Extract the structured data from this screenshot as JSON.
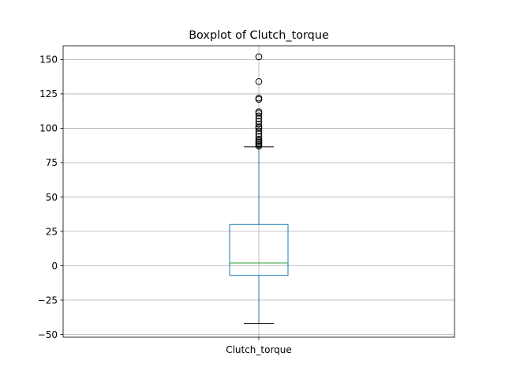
{
  "chart_data": {
    "type": "box",
    "title": "Boxplot of Clutch_torque",
    "xlabel": "",
    "ylabel": "",
    "categories": [
      "Clutch_torque"
    ],
    "ylim": [
      -52,
      160
    ],
    "yticks": [
      -50,
      -25,
      0,
      25,
      50,
      75,
      100,
      125,
      150
    ],
    "grid": true,
    "legend": "none",
    "boxes": [
      {
        "label": "Clutch_torque",
        "whisker_low": -42,
        "q1": -7,
        "median": 2,
        "q3": 30,
        "whisker_high": 86.5,
        "outliers": [
          87,
          88,
          89,
          90,
          91,
          92,
          94,
          96,
          98,
          100,
          101,
          103,
          105,
          107,
          109,
          111,
          112,
          121,
          122,
          134,
          152
        ]
      }
    ]
  },
  "colors": {
    "box": "#1f77b4",
    "median": "#2ca02c",
    "whisker_cap": "#000000",
    "outlier": "#000000",
    "grid": "#b0b0b0"
  }
}
